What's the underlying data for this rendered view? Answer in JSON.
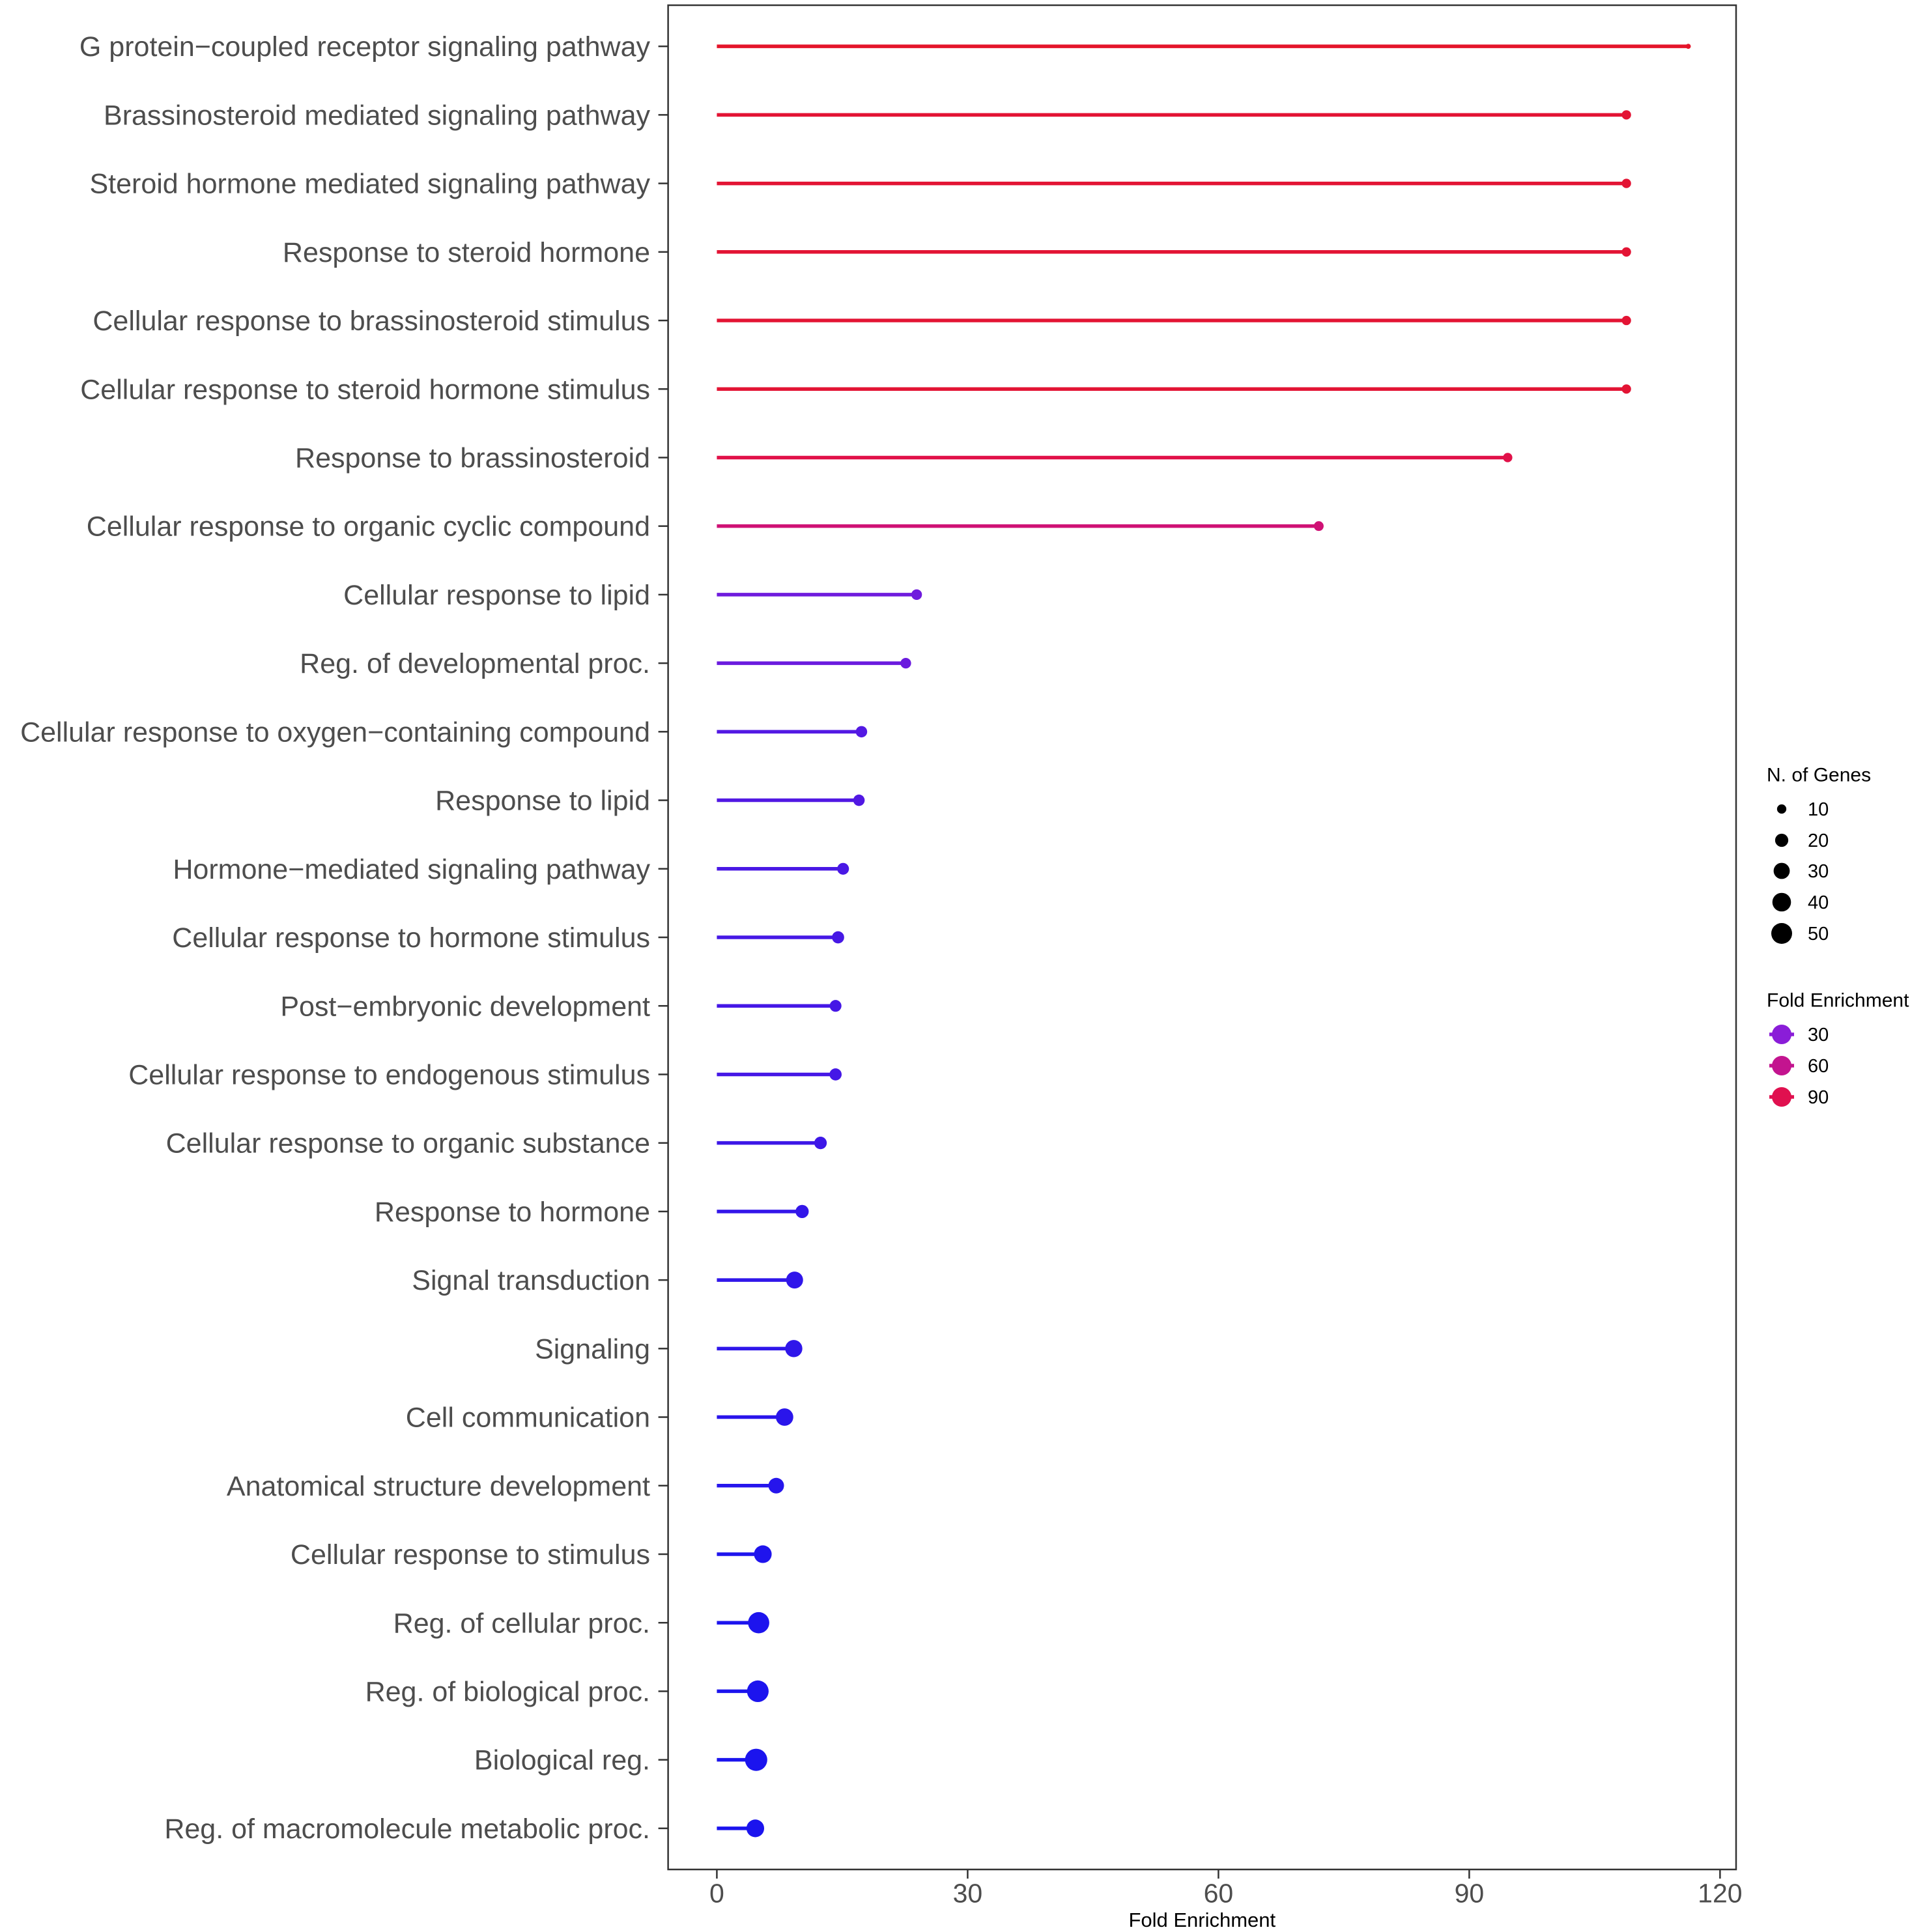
{
  "chart_data": {
    "type": "bar",
    "categories": [
      "G protein−coupled receptor signaling pathway",
      "Brassinosteroid mediated signaling pathway",
      "Steroid hormone mediated signaling pathway",
      "Response to steroid hormone",
      "Cellular response to brassinosteroid stimulus",
      "Cellular response to steroid hormone stimulus",
      "Response to brassinosteroid",
      "Cellular response to organic cyclic compound",
      "Cellular response to lipid",
      "Reg. of developmental proc.",
      "Cellular response to oxygen−containing compound",
      "Response to lipid",
      "Hormone−mediated signaling pathway",
      "Cellular response to hormone stimulus",
      "Post−embryonic development",
      "Cellular response to endogenous stimulus",
      "Cellular response to organic substance",
      "Response to hormone",
      "Signal transduction",
      "Signaling",
      "Cell communication",
      "Anatomical structure development",
      "Cellular response to stimulus",
      "Reg. of cellular proc.",
      "Reg. of biological proc.",
      "Biological reg.",
      "Reg. of macromolecule metabolic proc."
    ],
    "values": [
      116.2,
      108.8,
      108.8,
      108.8,
      108.8,
      108.8,
      94.6,
      72.0,
      23.9,
      22.6,
      17.3,
      17.0,
      15.1,
      14.5,
      14.2,
      14.2,
      12.4,
      10.2,
      9.3,
      9.2,
      8.1,
      7.1,
      5.5,
      5.0,
      4.9,
      4.7,
      4.6
    ],
    "gene_counts": [
      3,
      10,
      10,
      10,
      10,
      10,
      10,
      11,
      13,
      13,
      15,
      15,
      16,
      17,
      16,
      17,
      18,
      20,
      33,
      34,
      35,
      28,
      36,
      52,
      54,
      57,
      36
    ],
    "xlabel": "Fold Enrichment",
    "ylabel": "",
    "xlim": [
      -5.83,
      121.92
    ],
    "x_ticks": [
      0,
      30,
      60,
      90,
      120
    ],
    "grid": false,
    "color_scale": [
      {
        "value": 4.6,
        "color": "#1b14ee"
      },
      {
        "value": 30,
        "color": "#8a1dd8"
      },
      {
        "value": 60,
        "color": "#c3148f"
      },
      {
        "value": 90,
        "color": "#e0104f"
      },
      {
        "value": 116.2,
        "color": "#e4152a"
      }
    ],
    "legend": {
      "position": "right",
      "size": {
        "title": "N. of Genes",
        "breaks": [
          10,
          20,
          30,
          40,
          50
        ]
      },
      "color": {
        "title": "Fold Enrichment",
        "breaks": [
          30,
          60,
          90
        ]
      }
    }
  }
}
